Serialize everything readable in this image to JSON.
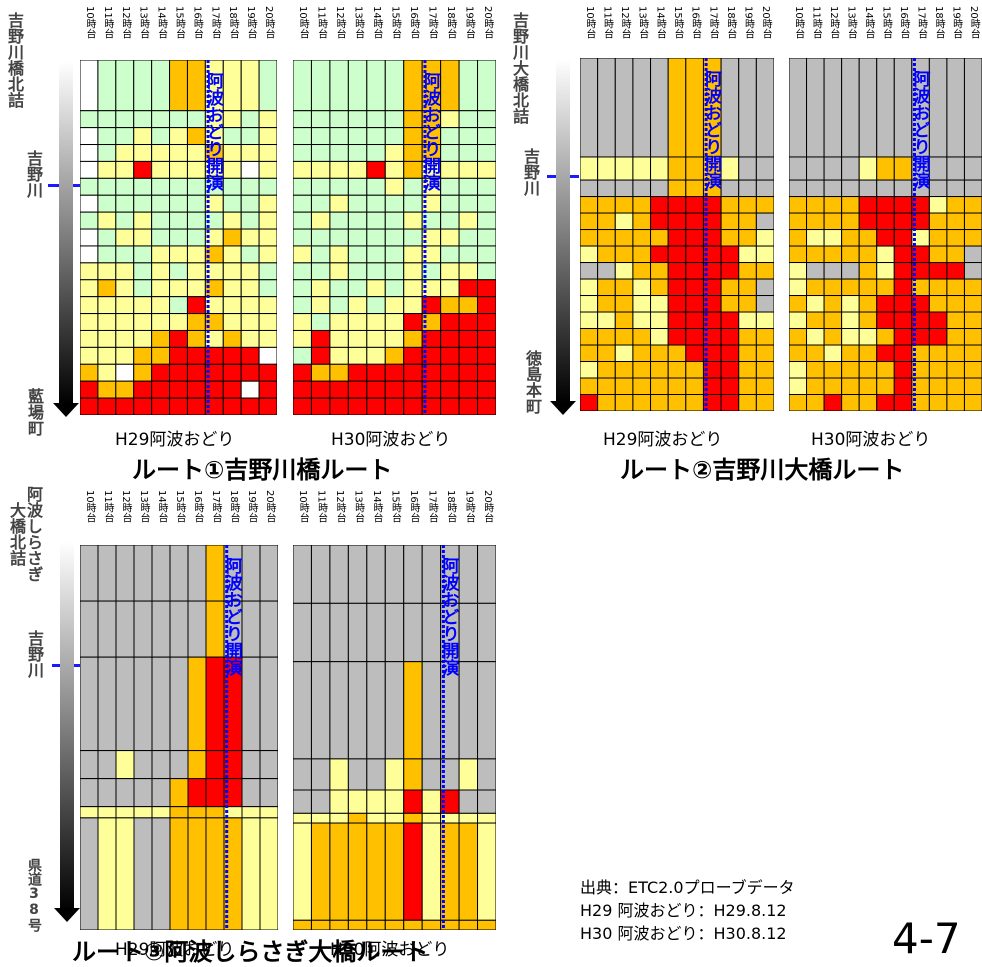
{
  "hours": [
    "10時台",
    "11時台",
    "12時台",
    "13時台",
    "14時台",
    "15時台",
    "16時台",
    "17時台",
    "18時台",
    "19時台",
    "20時台"
  ],
  "event_label": "阿波おどり開演",
  "colors": {
    "gray": "#bdbdbd",
    "green": "#ccffcc",
    "yellow": "#ffff99",
    "orange": "#ffc000",
    "red": "#ff0000",
    "white": "#ffffff",
    "event_line": "#0000ff"
  },
  "route1": {
    "title": "ルート①吉野川橋ルート",
    "start_label": "吉野川橋北詰",
    "mid_label": "吉野川",
    "end_label": "藍場町",
    "left_caption": "H29阿波おどり",
    "right_caption": "H30阿波おどり"
  },
  "route2": {
    "title": "ルート②吉野川大橋ルート",
    "start_label": "吉野川大橋北詰",
    "mid_label": "吉野川",
    "end_label": "徳島本町",
    "left_caption": "H29阿波おどり",
    "right_caption": "H30阿波おどり"
  },
  "route3": {
    "title": "ルート③阿波しらさぎ大橋ルート",
    "start_label_line1": "阿波しらさぎ",
    "start_label_line2": "大橋北詰",
    "mid_label": "吉野川",
    "end_label": "県道38号",
    "left_caption": "H29阿波おどり",
    "right_caption": "H30阿波おどり"
  },
  "source": {
    "line1": "出典：ETC2.0プローブデータ",
    "line2": "H29 阿波おどり：H29.8.12",
    "line3": "H30 阿波おどり：H30.8.12"
  },
  "page_number": "4-7",
  "chart_data": [
    {
      "type": "heatmap",
      "route": "ルート①吉野川橋ルート",
      "panel": "H29阿波おどり",
      "event_hour": "17時台",
      "columns": [
        "10時台",
        "11時台",
        "12時台",
        "13時台",
        "14時台",
        "15時台",
        "16時台",
        "17時台",
        "18時台",
        "19時台",
        "20時台"
      ],
      "segment_weights": [
        3,
        1,
        1,
        1,
        1,
        1,
        1,
        1,
        1,
        1,
        1,
        1,
        1,
        1,
        1,
        1,
        1,
        1,
        1
      ],
      "rows": [
        "WGGGGOOYYYG",
        "GGGGGGGYYGY",
        "WGGYGYOYGGY",
        "WGYYYYYOYYY",
        "WYYRYYYYYWY",
        "GGGGGGGGGGG",
        "WGGGGGGYGGY",
        "GYGYGGGGYGY",
        "WGYYGGGYOYY",
        "WGGGYYYOYGY",
        "YYYGYGYYYYG",
        "YOYGYYYOYYG",
        "YYYYYGRYYYY",
        "YYYYYYOOYYY",
        "YYYYOROYOYY",
        "YYYOORRRRRW",
        "OYWORRRRRRR",
        "ROORRRRRRWR",
        "RRRRRRRRRRR"
      ]
    },
    {
      "type": "heatmap",
      "route": "ルート①吉野川橋ルート",
      "panel": "H30阿波おどり",
      "event_hour": "17時台",
      "columns": [
        "10時台",
        "11時台",
        "12時台",
        "13時台",
        "14時台",
        "15時台",
        "16時台",
        "17時台",
        "18時台",
        "19時台",
        "20時台"
      ],
      "segment_weights": [
        3,
        1,
        1,
        1,
        1,
        1,
        1,
        1,
        1,
        1,
        1,
        1,
        1,
        1,
        1,
        1,
        1,
        1,
        1
      ],
      "rows": [
        "GGGGGGOOOGG",
        "GGGGGGOOYGG",
        "GGGGGGOOGGG",
        "GGGGGYOOGGG",
        "YYYYRYOYYYY",
        "GGGGGYGYGGG",
        "GGYGGGGYGGG",
        "GYGGGGYGGYG",
        "GGGGGGGYYGG",
        "YGYGGGYYGGG",
        "GGYGGGYGYYG",
        "GYGGYGYYYRR",
        "GYGYGYYROOR",
        "YGYYYYRORRR",
        "YRYYYYORRRR",
        "GRYYYORRRRR",
        "ROORRRRRRRR",
        "RRRRRRRRRRR",
        "RRRRRRRRRRR"
      ]
    },
    {
      "type": "heatmap",
      "route": "ルート②吉野川大橋ルート",
      "panel": "H29阿波おどり",
      "event_hour": "17時台",
      "columns": [
        "10時台",
        "11時台",
        "12時台",
        "13時台",
        "14時台",
        "15時台",
        "16時台",
        "17時台",
        "18時台",
        "19時台",
        "20時台"
      ],
      "segment_weights": [
        6,
        1.4,
        1,
        1,
        1,
        1,
        1,
        1,
        1,
        1,
        1,
        1,
        1,
        1,
        1,
        1
      ],
      "rows": [
        "GGGGGOOOGGG",
        "YYYYYOOOYGG",
        "GGGGGOOOGGG",
        "OOOORRRROOO",
        "OOYORRRROOG",
        "OOOOORRROOY",
        "YOOORRRRRYY",
        "GGYOORRRROO",
        "YOOYORRROOG",
        "YOOYYRRROOG",
        "YYOYYRRRRYY",
        "OOOOYRRRROO",
        "OOYOOORRROO",
        "YOOOOOORROO",
        "OOOOOOORROO",
        "ROOOOOORROO"
      ]
    },
    {
      "type": "heatmap",
      "route": "ルート②吉野川大橋ルート",
      "panel": "H30阿波おどり",
      "event_hour": "17時台",
      "columns": [
        "10時台",
        "11時台",
        "12時台",
        "13時台",
        "14時台",
        "15時台",
        "16時台",
        "17時台",
        "18時台",
        "19時台",
        "20時台"
      ],
      "segment_weights": [
        6,
        1.4,
        1,
        1,
        1,
        1,
        1,
        1,
        1,
        1,
        1,
        1,
        1,
        1,
        1,
        1
      ],
      "rows": [
        "GGGGGGGGGGG",
        "GGGGYOOGGGG",
        "GGGGGGGGGGG",
        "OOOORRRRYOO",
        "OOOORRRROOO",
        "OYYOORRYOOO",
        "OOOOOYRROOG",
        "YGGGOYRRRRG",
        "YOOOOOROOOO",
        "OYOYORRROOO",
        "YOOYORRRROO",
        "OYOYYORRROO",
        "OOYOORROOOO",
        "YOOOOOROOOO",
        "YOOOOOROOOO",
        "OOROORROOOO"
      ]
    },
    {
      "type": "heatmap",
      "route": "ルート③阿波しらさぎ大橋ルート",
      "panel": "H29阿波おどり",
      "event_hour": "18時台",
      "columns": [
        "10時台",
        "11時台",
        "12時台",
        "13時台",
        "14時台",
        "15時台",
        "16時台",
        "17時台",
        "18時台",
        "19時台",
        "20時台"
      ],
      "segment_weights": [
        3,
        3,
        5,
        1.5,
        1.5,
        0.6,
        6
      ],
      "rows": [
        "GGGGGGGOGGG",
        "GGGGGGGOGGG",
        "GGGGGGORRGG",
        "GGYGGGORRGG",
        "GGGGGORRRGG",
        "YYYYYOOOYYY",
        "GYYGGOOOOYY"
      ]
    },
    {
      "type": "heatmap",
      "route": "ルート③阿波しらさぎ大橋ルート",
      "panel": "H30阿波おどり",
      "event_hour": "18時台",
      "columns": [
        "10時台",
        "11時台",
        "12時台",
        "13時台",
        "14時台",
        "15時台",
        "16時台",
        "17時台",
        "18時台",
        "19時台",
        "20時台"
      ],
      "segment_weights": [
        3,
        3,
        5,
        1.6,
        1.2,
        0.5,
        5,
        0.5
      ],
      "rows": [
        "GGGGGGGGGGG",
        "GGGGGGGGGGG",
        "GGGGGGOGGGG",
        "GGYGGYOGGYG",
        "GGYYYYRYRGG",
        "YYYOYYOYYYY",
        "YOOOOORYOOY",
        "OOOOOOOOOOO"
      ]
    }
  ]
}
